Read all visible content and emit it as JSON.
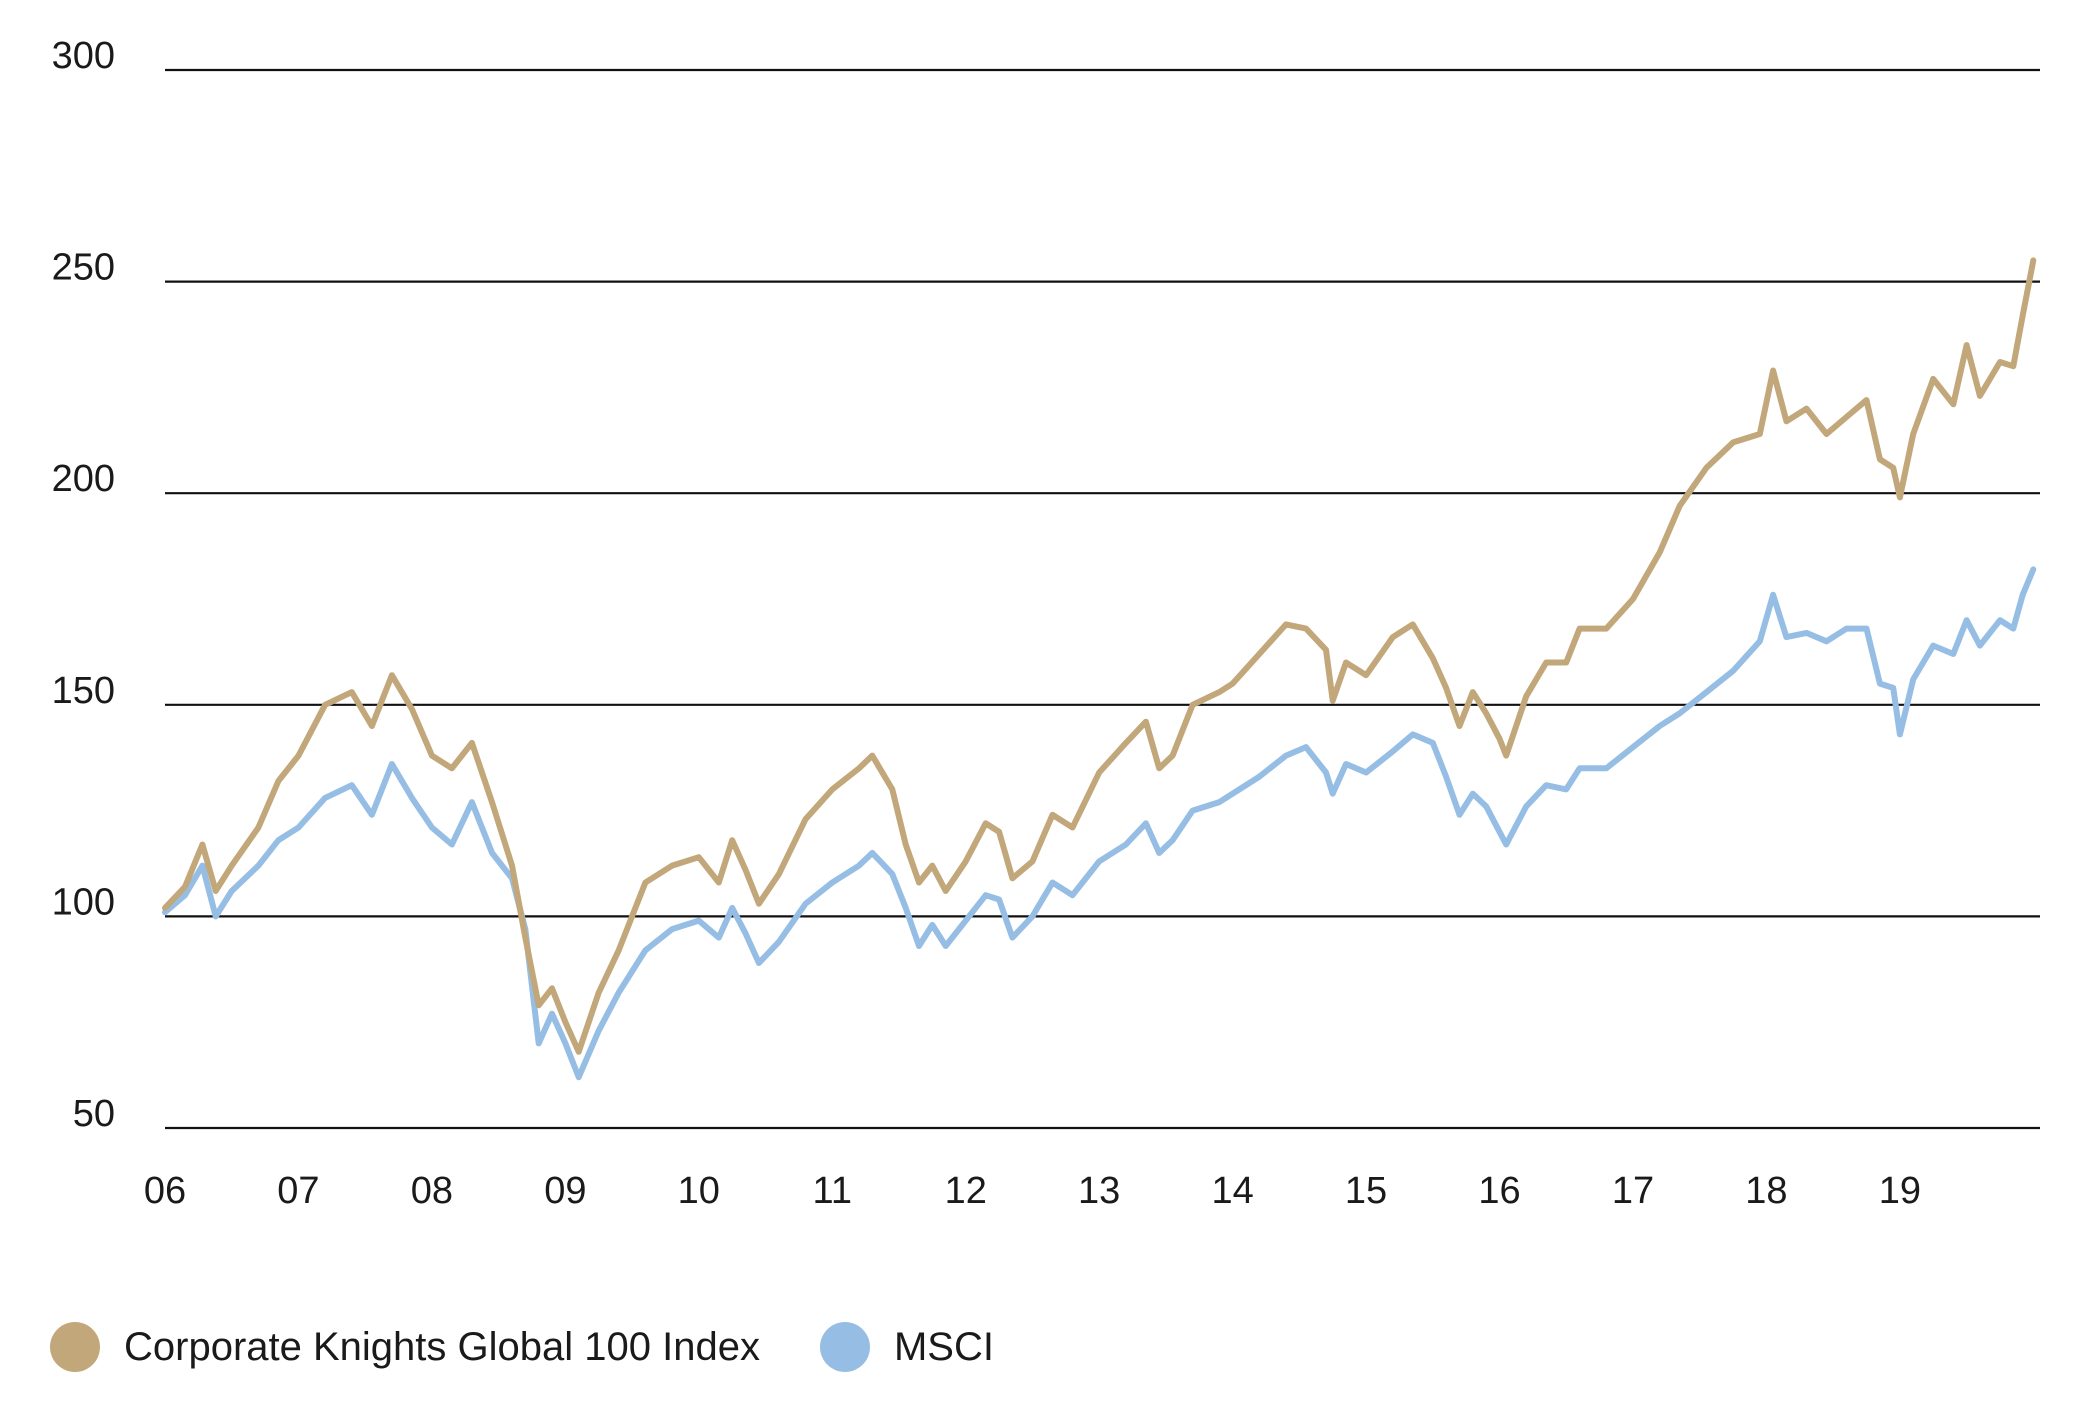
{
  "chart_data": {
    "type": "line",
    "title": "",
    "xlabel": "",
    "ylabel": "",
    "ylim": [
      50,
      300
    ],
    "xlim": [
      2006.0,
      2020.05
    ],
    "grid": true,
    "legend_position": "bottom-left",
    "yticks": [
      {
        "value": 300,
        "label": "300"
      },
      {
        "value": 250,
        "label": "250"
      },
      {
        "value": 200,
        "label": "200"
      },
      {
        "value": 150,
        "label": "150"
      },
      {
        "value": 100,
        "label": "100"
      },
      {
        "value": 50,
        "label": "50"
      }
    ],
    "xticks": [
      {
        "value": 2006,
        "label": "06"
      },
      {
        "value": 2007,
        "label": "07"
      },
      {
        "value": 2008,
        "label": "08"
      },
      {
        "value": 2009,
        "label": "09"
      },
      {
        "value": 2010,
        "label": "10"
      },
      {
        "value": 2011,
        "label": "11"
      },
      {
        "value": 2012,
        "label": "12"
      },
      {
        "value": 2013,
        "label": "13"
      },
      {
        "value": 2014,
        "label": "14"
      },
      {
        "value": 2015,
        "label": "15"
      },
      {
        "value": 2016,
        "label": "16"
      },
      {
        "value": 2017,
        "label": "17"
      },
      {
        "value": 2018,
        "label": "18"
      },
      {
        "value": 2019,
        "label": "19"
      }
    ],
    "series": [
      {
        "name": "Corporate Knights Global 100 Index",
        "color": "#C2A77A",
        "points": [
          [
            2006.0,
            102
          ],
          [
            2006.15,
            107
          ],
          [
            2006.28,
            117
          ],
          [
            2006.38,
            106
          ],
          [
            2006.5,
            112
          ],
          [
            2006.7,
            121
          ],
          [
            2006.85,
            132
          ],
          [
            2007.0,
            138
          ],
          [
            2007.2,
            150
          ],
          [
            2007.4,
            153
          ],
          [
            2007.55,
            145
          ],
          [
            2007.7,
            157
          ],
          [
            2007.85,
            149
          ],
          [
            2008.0,
            138
          ],
          [
            2008.15,
            135
          ],
          [
            2008.3,
            141
          ],
          [
            2008.45,
            127
          ],
          [
            2008.6,
            112
          ],
          [
            2008.7,
            95
          ],
          [
            2008.8,
            79
          ],
          [
            2008.9,
            83
          ],
          [
            2009.0,
            75
          ],
          [
            2009.1,
            68
          ],
          [
            2009.25,
            82
          ],
          [
            2009.4,
            92
          ],
          [
            2009.6,
            108
          ],
          [
            2009.8,
            112
          ],
          [
            2010.0,
            114
          ],
          [
            2010.15,
            108
          ],
          [
            2010.25,
            118
          ],
          [
            2010.35,
            111
          ],
          [
            2010.45,
            103
          ],
          [
            2010.6,
            110
          ],
          [
            2010.8,
            123
          ],
          [
            2011.0,
            130
          ],
          [
            2011.2,
            135
          ],
          [
            2011.3,
            138
          ],
          [
            2011.45,
            130
          ],
          [
            2011.55,
            117
          ],
          [
            2011.65,
            108
          ],
          [
            2011.75,
            112
          ],
          [
            2011.85,
            106
          ],
          [
            2012.0,
            113
          ],
          [
            2012.15,
            122
          ],
          [
            2012.25,
            120
          ],
          [
            2012.35,
            109
          ],
          [
            2012.5,
            113
          ],
          [
            2012.65,
            124
          ],
          [
            2012.8,
            121
          ],
          [
            2013.0,
            134
          ],
          [
            2013.2,
            141
          ],
          [
            2013.35,
            146
          ],
          [
            2013.45,
            135
          ],
          [
            2013.55,
            138
          ],
          [
            2013.7,
            150
          ],
          [
            2013.9,
            153
          ],
          [
            2014.0,
            155
          ],
          [
            2014.2,
            162
          ],
          [
            2014.4,
            169
          ],
          [
            2014.55,
            168
          ],
          [
            2014.7,
            163
          ],
          [
            2014.75,
            151
          ],
          [
            2014.85,
            160
          ],
          [
            2015.0,
            157
          ],
          [
            2015.2,
            166
          ],
          [
            2015.35,
            169
          ],
          [
            2015.5,
            161
          ],
          [
            2015.6,
            154
          ],
          [
            2015.7,
            145
          ],
          [
            2015.8,
            153
          ],
          [
            2015.9,
            148
          ],
          [
            2016.0,
            142
          ],
          [
            2016.05,
            138
          ],
          [
            2016.2,
            152
          ],
          [
            2016.35,
            160
          ],
          [
            2016.5,
            160
          ],
          [
            2016.6,
            168
          ],
          [
            2016.8,
            168
          ],
          [
            2017.0,
            175
          ],
          [
            2017.2,
            186
          ],
          [
            2017.35,
            197
          ],
          [
            2017.55,
            206
          ],
          [
            2017.75,
            212
          ],
          [
            2017.95,
            214
          ],
          [
            2018.05,
            229
          ],
          [
            2018.15,
            217
          ],
          [
            2018.3,
            220
          ],
          [
            2018.45,
            214
          ],
          [
            2018.6,
            218
          ],
          [
            2018.75,
            222
          ],
          [
            2018.85,
            208
          ],
          [
            2018.95,
            206
          ],
          [
            2019.0,
            199
          ],
          [
            2019.1,
            214
          ],
          [
            2019.25,
            227
          ],
          [
            2019.4,
            221
          ],
          [
            2019.5,
            235
          ],
          [
            2019.6,
            223
          ],
          [
            2019.75,
            231
          ],
          [
            2019.85,
            230
          ],
          [
            2019.92,
            242
          ],
          [
            2020.0,
            255
          ]
        ]
      },
      {
        "name": "MSCI",
        "color": "#96BEE4",
        "points": [
          [
            2006.0,
            101
          ],
          [
            2006.15,
            105
          ],
          [
            2006.28,
            112
          ],
          [
            2006.38,
            100
          ],
          [
            2006.5,
            106
          ],
          [
            2006.7,
            112
          ],
          [
            2006.85,
            118
          ],
          [
            2007.0,
            121
          ],
          [
            2007.2,
            128
          ],
          [
            2007.4,
            131
          ],
          [
            2007.55,
            124
          ],
          [
            2007.7,
            136
          ],
          [
            2007.85,
            128
          ],
          [
            2008.0,
            121
          ],
          [
            2008.15,
            117
          ],
          [
            2008.3,
            127
          ],
          [
            2008.45,
            115
          ],
          [
            2008.6,
            109
          ],
          [
            2008.7,
            97
          ],
          [
            2008.8,
            70
          ],
          [
            2008.9,
            77
          ],
          [
            2009.0,
            70
          ],
          [
            2009.1,
            62
          ],
          [
            2009.25,
            73
          ],
          [
            2009.4,
            82
          ],
          [
            2009.6,
            92
          ],
          [
            2009.8,
            97
          ],
          [
            2010.0,
            99
          ],
          [
            2010.15,
            95
          ],
          [
            2010.25,
            102
          ],
          [
            2010.35,
            96
          ],
          [
            2010.45,
            89
          ],
          [
            2010.6,
            94
          ],
          [
            2010.8,
            103
          ],
          [
            2011.0,
            108
          ],
          [
            2011.2,
            112
          ],
          [
            2011.3,
            115
          ],
          [
            2011.45,
            110
          ],
          [
            2011.55,
            102
          ],
          [
            2011.65,
            93
          ],
          [
            2011.75,
            98
          ],
          [
            2011.85,
            93
          ],
          [
            2012.0,
            99
          ],
          [
            2012.15,
            105
          ],
          [
            2012.25,
            104
          ],
          [
            2012.35,
            95
          ],
          [
            2012.5,
            100
          ],
          [
            2012.65,
            108
          ],
          [
            2012.8,
            105
          ],
          [
            2013.0,
            113
          ],
          [
            2013.2,
            117
          ],
          [
            2013.35,
            122
          ],
          [
            2013.45,
            115
          ],
          [
            2013.55,
            118
          ],
          [
            2013.7,
            125
          ],
          [
            2013.9,
            127
          ],
          [
            2014.0,
            129
          ],
          [
            2014.2,
            133
          ],
          [
            2014.4,
            138
          ],
          [
            2014.55,
            140
          ],
          [
            2014.7,
            134
          ],
          [
            2014.75,
            129
          ],
          [
            2014.85,
            136
          ],
          [
            2015.0,
            134
          ],
          [
            2015.2,
            139
          ],
          [
            2015.35,
            143
          ],
          [
            2015.5,
            141
          ],
          [
            2015.6,
            133
          ],
          [
            2015.7,
            124
          ],
          [
            2015.8,
            129
          ],
          [
            2015.9,
            126
          ],
          [
            2016.0,
            120
          ],
          [
            2016.05,
            117
          ],
          [
            2016.2,
            126
          ],
          [
            2016.35,
            131
          ],
          [
            2016.5,
            130
          ],
          [
            2016.6,
            135
          ],
          [
            2016.8,
            135
          ],
          [
            2017.0,
            140
          ],
          [
            2017.2,
            145
          ],
          [
            2017.35,
            148
          ],
          [
            2017.55,
            153
          ],
          [
            2017.75,
            158
          ],
          [
            2017.95,
            165
          ],
          [
            2018.05,
            176
          ],
          [
            2018.15,
            166
          ],
          [
            2018.3,
            167
          ],
          [
            2018.45,
            165
          ],
          [
            2018.6,
            168
          ],
          [
            2018.75,
            168
          ],
          [
            2018.85,
            155
          ],
          [
            2018.95,
            154
          ],
          [
            2019.0,
            143
          ],
          [
            2019.1,
            156
          ],
          [
            2019.25,
            164
          ],
          [
            2019.4,
            162
          ],
          [
            2019.5,
            170
          ],
          [
            2019.6,
            164
          ],
          [
            2019.75,
            170
          ],
          [
            2019.85,
            168
          ],
          [
            2019.92,
            176
          ],
          [
            2020.0,
            182
          ]
        ]
      }
    ]
  }
}
